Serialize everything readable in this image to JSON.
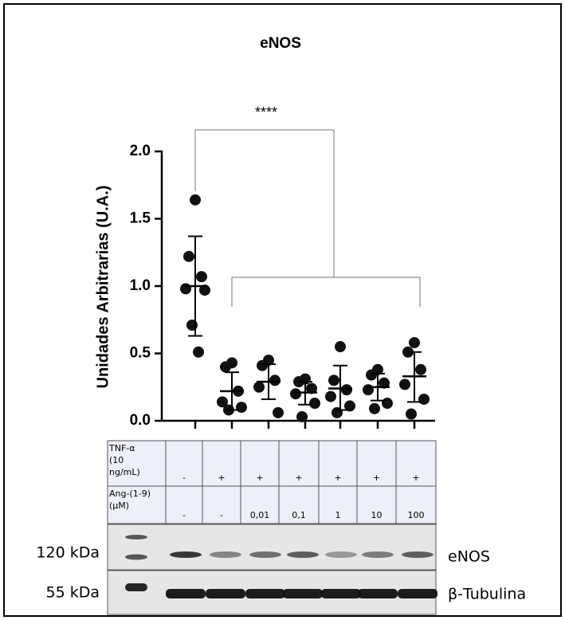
{
  "chart_data": {
    "type": "dotplot",
    "title": "eNOS",
    "y_label": "Unidades Arbitrarias (U.A.)",
    "ylim": [
      0,
      2
    ],
    "yticks": [
      {
        "value": 0,
        "label": "0.0"
      },
      {
        "value": 0.5,
        "label": "0.5"
      },
      {
        "value": 1,
        "label": "1.0"
      },
      {
        "value": 1.5,
        "label": "1.5"
      },
      {
        "value": 2,
        "label": "2.0"
      }
    ],
    "color": "#111111",
    "annotation": "****",
    "groups": [
      {
        "values": [
          1.64,
          1.22,
          1.07,
          0.98,
          0.97,
          0.71,
          0.51
        ],
        "mean": 1.0,
        "error_low": 0.63,
        "error_high": 1.37
      },
      {
        "values": [
          0.43,
          0.4,
          0.22,
          0.14,
          0.1,
          0.08
        ],
        "mean": 0.22,
        "error_low": 0.08,
        "error_high": 0.36
      },
      {
        "values": [
          0.45,
          0.41,
          0.3,
          0.25,
          0.06
        ],
        "mean": 0.29,
        "error_low": 0.16,
        "error_high": 0.42
      },
      {
        "values": [
          0.31,
          0.29,
          0.24,
          0.2,
          0.13,
          0.03
        ],
        "mean": 0.21,
        "error_low": 0.12,
        "error_high": 0.29
      },
      {
        "values": [
          0.55,
          0.3,
          0.23,
          0.18,
          0.11,
          0.06
        ],
        "mean": 0.24,
        "error_low": 0.08,
        "error_high": 0.41
      },
      {
        "values": [
          0.38,
          0.34,
          0.28,
          0.23,
          0.13,
          0.09
        ],
        "mean": 0.25,
        "error_low": 0.15,
        "error_high": 0.35
      },
      {
        "values": [
          0.58,
          0.51,
          0.38,
          0.27,
          0.16,
          0.05
        ],
        "mean": 0.33,
        "error_low": 0.14,
        "error_high": 0.51
      }
    ]
  },
  "table": {
    "rows": [
      {
        "label": [
          "TNF-α",
          "(10",
          "ng/mL)"
        ],
        "cells": [
          "-",
          "+",
          "+",
          "+",
          "+",
          "+",
          "+"
        ]
      },
      {
        "label": [
          "Ang-(1-9)",
          "(μM)"
        ],
        "cells": [
          "-",
          "-",
          "0,01",
          "0,1",
          "1",
          "10",
          "100"
        ]
      }
    ]
  },
  "blots": [
    {
      "marker": "120 kDa",
      "name": "eNOS"
    },
    {
      "marker": "55 kDa",
      "name": "β-Tubulina"
    }
  ]
}
